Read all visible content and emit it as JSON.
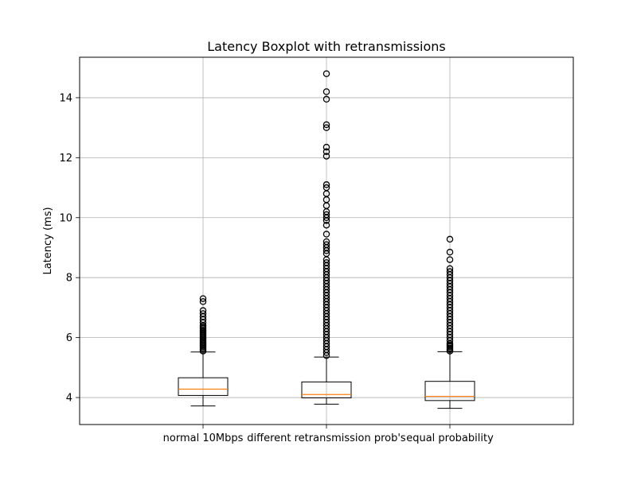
{
  "chart_data": {
    "type": "boxplot",
    "title": "Latency Boxplot with retransmissions",
    "xlabel": "",
    "ylabel": "Latency (ms)",
    "ylim": [
      3.1,
      15.35
    ],
    "yticks": [
      4,
      6,
      8,
      10,
      12,
      14
    ],
    "grid": true,
    "categories": [
      "normal 10Mbps",
      "different retransmission prob's",
      "equal probability"
    ],
    "boxes": [
      {
        "whisker_low": 3.72,
        "q1": 4.07,
        "median": 4.28,
        "q3": 4.66,
        "whisker_high": 5.52,
        "outliers": [
          5.55,
          5.6,
          5.65,
          5.7,
          5.75,
          5.8,
          5.85,
          5.9,
          5.95,
          6.0,
          6.05,
          6.1,
          6.15,
          6.2,
          6.25,
          6.3,
          6.35,
          6.4,
          6.5,
          6.6,
          6.7,
          6.8,
          6.9,
          7.2,
          7.3
        ]
      },
      {
        "whisker_low": 3.78,
        "q1": 3.99,
        "median": 4.1,
        "q3": 4.52,
        "whisker_high": 5.35,
        "outliers": [
          5.4,
          5.5,
          5.6,
          5.7,
          5.8,
          5.9,
          6.0,
          6.1,
          6.2,
          6.3,
          6.4,
          6.5,
          6.6,
          6.7,
          6.8,
          6.9,
          7.0,
          7.1,
          7.2,
          7.3,
          7.4,
          7.5,
          7.6,
          7.7,
          7.8,
          7.9,
          8.0,
          8.1,
          8.2,
          8.3,
          8.4,
          8.5,
          8.6,
          8.8,
          8.9,
          9.0,
          9.1,
          9.2,
          9.45,
          9.75,
          9.9,
          10.0,
          10.1,
          10.2,
          10.4,
          10.6,
          10.8,
          11.0,
          11.1,
          12.05,
          12.2,
          12.35,
          13.0,
          13.1,
          13.95,
          14.2,
          14.8
        ]
      },
      {
        "whisker_low": 3.64,
        "q1": 3.9,
        "median": 4.04,
        "q3": 4.54,
        "whisker_high": 5.53,
        "outliers": [
          5.55,
          5.6,
          5.65,
          5.7,
          5.75,
          5.8,
          5.9,
          6.0,
          6.1,
          6.2,
          6.3,
          6.4,
          6.5,
          6.6,
          6.7,
          6.8,
          6.9,
          7.0,
          7.1,
          7.2,
          7.3,
          7.4,
          7.5,
          7.6,
          7.7,
          7.8,
          7.9,
          8.0,
          8.1,
          8.2,
          8.3,
          8.6,
          8.85,
          9.28
        ]
      }
    ],
    "colors": {
      "box": "#000000",
      "median": "#ff7f0e",
      "grid": "#b0b0b0",
      "outlier": "#000000"
    }
  }
}
